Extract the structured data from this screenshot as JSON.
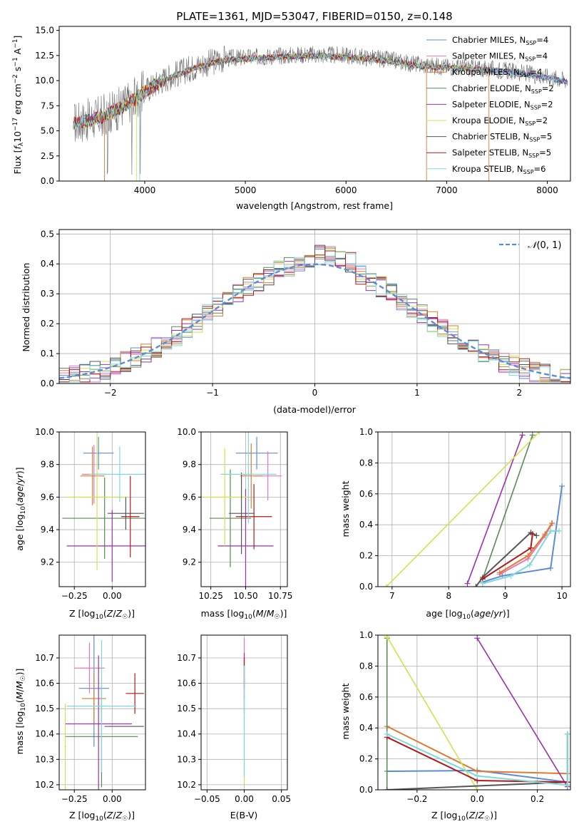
{
  "colors": {
    "chabrier_miles": "#5b8bd9",
    "salpeter_miles": "#e07ab5",
    "kroupa_miles": "#e07a30",
    "chabrier_elodie": "#5a8a5a",
    "salpeter_elodie": "#9a32b0",
    "kroupa_elodie": "#d4e050",
    "chabrier_stelib": "#555555",
    "salpeter_stelib": "#b01a1a",
    "kroupa_stelib": "#7fd8dc",
    "data": "#707070",
    "normal": "#5b8bd9"
  },
  "chart_data": [
    {
      "id": "spectrum",
      "type": "line",
      "title": "PLATE=1361, MJD=53047, FIBERID=0150, z=0.148",
      "xlabel": "wavelength [Angstrom, rest frame]",
      "ylabel": "Flux [f_λ 10^-17 erg cm^-2 s^-1 A^-1]",
      "xlim": [
        3150,
        8230
      ],
      "ylim": [
        0,
        15.4
      ],
      "xticks": [
        "4000",
        "5000",
        "6000",
        "7000",
        "8000"
      ],
      "yticks": [
        "0.0",
        "2.5",
        "5.0",
        "7.5",
        "10.0",
        "12.5",
        "15.0"
      ],
      "grid": false,
      "legend_position": "upper-right",
      "legend": [
        {
          "name": "Chabrier MILES, N_SSP=4",
          "color": "#5b8bd9"
        },
        {
          "name": "Salpeter MILES, N_SSP=4",
          "color": "#e07ab5"
        },
        {
          "name": "Kroupa MILES, N_SSP=4",
          "color": "#e07a30"
        },
        {
          "name": "Chabrier ELODIE, N_SSP=2",
          "color": "#5a8a5a"
        },
        {
          "name": "Salpeter ELODIE, N_SSP=2",
          "color": "#9a32b0"
        },
        {
          "name": "Kroupa ELODIE, N_SSP=2",
          "color": "#d4e050"
        },
        {
          "name": "Chabrier STELIB, N_SSP=5",
          "color": "#555555"
        },
        {
          "name": "Salpeter STELIB, N_SSP=5",
          "color": "#b01a1a"
        },
        {
          "name": "Kroupa STELIB, N_SSP=6",
          "color": "#7fd8dc"
        }
      ],
      "continuum": [
        [
          3300,
          5.8
        ],
        [
          3500,
          6.2
        ],
        [
          3700,
          7.0
        ],
        [
          3900,
          8.2
        ],
        [
          4000,
          9.0
        ],
        [
          4200,
          10.2
        ],
        [
          4500,
          11.4
        ],
        [
          4800,
          12.2
        ],
        [
          5200,
          12.4
        ],
        [
          5600,
          12.6
        ],
        [
          6000,
          12.5
        ],
        [
          6400,
          12.1
        ],
        [
          6800,
          11.5
        ],
        [
          7200,
          11.3
        ],
        [
          7600,
          11.0
        ],
        [
          8000,
          10.4
        ],
        [
          8200,
          10.0
        ]
      ]
    },
    {
      "id": "residuals",
      "type": "histogram",
      "xlabel": "(data-model)/error",
      "ylabel": "Normed distribution",
      "xlim": [
        -2.5,
        2.5
      ],
      "ylim": [
        0,
        0.515
      ],
      "xticks": [
        "−2",
        "−1",
        "0",
        "1",
        "2"
      ],
      "yticks": [
        "0.0",
        "0.1",
        "0.2",
        "0.3",
        "0.4",
        "0.5"
      ],
      "grid": true,
      "bin_width": 0.1,
      "legend_position": "upper-right",
      "legend": [
        {
          "name": "N(0,1)",
          "style": "dashed",
          "color": "#5b8bd9"
        }
      ]
    },
    {
      "id": "age-vs-Z",
      "type": "errorbar",
      "xlabel": "Z [log10(Z/Z☉)]",
      "ylabel": "age [log10(age/yr)]",
      "xlim": [
        -0.35,
        0.22
      ],
      "ylim": [
        9.05,
        10.0
      ],
      "xticks": [
        "−0.25",
        "0.00"
      ],
      "yticks": [
        "9.2",
        "9.4",
        "9.6",
        "9.8",
        "10.0"
      ],
      "grid": true,
      "points": [
        {
          "series": "Chabrier MILES",
          "x": -0.09,
          "xerr": 0.1,
          "y": 9.87,
          "yerr": 0.1
        },
        {
          "series": "Salpeter MILES",
          "x": -0.12,
          "xerr": 0.08,
          "y": 9.74,
          "yerr": 0.18
        },
        {
          "series": "Kroupa MILES",
          "x": -0.13,
          "xerr": 0.08,
          "y": 9.73,
          "yerr": 0.18
        },
        {
          "series": "Chabrier ELODIE",
          "x": -0.05,
          "xerr": 0.28,
          "y": 9.47,
          "yerr": 0.25
        },
        {
          "series": "Salpeter ELODIE",
          "x": 0.0,
          "xerr": 0.3,
          "y": 9.3,
          "yerr": 0.22
        },
        {
          "series": "Kroupa ELODIE",
          "x": -0.1,
          "xerr": 0.2,
          "y": 9.6,
          "yerr": 0.45
        },
        {
          "series": "Chabrier STELIB",
          "x": 0.09,
          "xerr": 0.12,
          "y": 9.5,
          "yerr": 0.1
        },
        {
          "series": "Salpeter STELIB",
          "x": 0.12,
          "xerr": 0.06,
          "y": 9.48,
          "yerr": 0.25
        },
        {
          "series": "Kroupa STELIB",
          "x": 0.05,
          "xerr": 0.2,
          "y": 9.74,
          "yerr": 0.17
        }
      ]
    },
    {
      "id": "age-vs-mass",
      "type": "errorbar",
      "xlabel": "mass [log10(M/M☉)]",
      "xlim": [
        10.18,
        10.8
      ],
      "ylim": [
        9.05,
        10.0
      ],
      "xticks": [
        "10.25",
        "10.50",
        "10.75"
      ],
      "yticks": [
        "9.2",
        "9.4",
        "9.6",
        "9.8",
        "10.0"
      ],
      "grid": true,
      "points": [
        {
          "series": "Chabrier MILES",
          "x": 10.58,
          "xerr": 0.15,
          "y": 9.87,
          "yerr": 0.1
        },
        {
          "series": "Salpeter MILES",
          "x": 10.66,
          "xerr": 0.1,
          "y": 9.73,
          "yerr": 0.15
        },
        {
          "series": "Kroupa MILES",
          "x": 10.54,
          "xerr": 0.08,
          "y": 9.73,
          "yerr": 0.2
        },
        {
          "series": "Chabrier ELODIE",
          "x": 10.39,
          "xerr": 0.15,
          "y": 9.47,
          "yerr": 0.3
        },
        {
          "series": "Salpeter ELODIE",
          "x": 10.5,
          "xerr": 0.2,
          "y": 9.3,
          "yerr": 0.35
        },
        {
          "series": "Kroupa ELODIE",
          "x": 10.35,
          "xerr": 0.17,
          "y": 9.6,
          "yerr": 0.3
        },
        {
          "series": "Chabrier STELIB",
          "x": 10.47,
          "xerr": 0.09,
          "y": 9.5,
          "yerr": 0.25
        },
        {
          "series": "Salpeter STELIB",
          "x": 10.56,
          "xerr": 0.13,
          "y": 9.48,
          "yerr": 0.2
        },
        {
          "series": "Kroupa STELIB",
          "x": 10.52,
          "xerr": 0.2,
          "y": 9.74,
          "yerr": 0.3
        }
      ]
    },
    {
      "id": "mass-weight-vs-age",
      "type": "line",
      "xlabel": "age [log10(age/yr)]",
      "ylabel": "mass weight",
      "xlim": [
        6.75,
        10.15
      ],
      "ylim": [
        0,
        1.0
      ],
      "xticks": [
        "7",
        "8",
        "9",
        "10"
      ],
      "yticks": [
        "0.0",
        "0.2",
        "0.4",
        "0.6",
        "0.8",
        "1.0"
      ],
      "grid": true,
      "series": [
        {
          "name": "Chabrier MILES",
          "points": [
            [
              8.6,
              0.03
            ],
            [
              8.95,
              0.07
            ],
            [
              9.8,
              0.12
            ],
            [
              10.0,
              0.65
            ]
          ]
        },
        {
          "name": "Salpeter MILES",
          "points": [
            [
              8.9,
              0.08
            ],
            [
              9.4,
              0.18
            ],
            [
              9.7,
              0.33
            ],
            [
              9.83,
              0.41
            ]
          ]
        },
        {
          "name": "Kroupa MILES",
          "points": [
            [
              8.9,
              0.09
            ],
            [
              9.4,
              0.2
            ],
            [
              9.7,
              0.34
            ],
            [
              9.82,
              0.41
            ]
          ]
        },
        {
          "name": "Chabrier ELODIE",
          "points": [
            [
              8.6,
              0.05
            ],
            [
              9.48,
              0.98
            ]
          ]
        },
        {
          "name": "Salpeter ELODIE",
          "points": [
            [
              8.33,
              0.02
            ],
            [
              9.3,
              0.98
            ]
          ]
        },
        {
          "name": "Kroupa ELODIE",
          "points": [
            [
              6.9,
              0.0
            ],
            [
              9.6,
              1.0
            ]
          ]
        },
        {
          "name": "Chabrier STELIB",
          "points": [
            [
              8.48,
              0.0
            ],
            [
              8.6,
              0.06
            ],
            [
              9.45,
              0.35
            ],
            [
              9.55,
              0.33
            ]
          ]
        },
        {
          "name": "Salpeter STELIB",
          "points": [
            [
              8.6,
              0.05
            ],
            [
              9.45,
              0.25
            ],
            [
              9.48,
              0.34
            ]
          ]
        },
        {
          "name": "Kroupa STELIB",
          "points": [
            [
              8.6,
              0.02
            ],
            [
              9.1,
              0.07
            ],
            [
              9.43,
              0.14
            ],
            [
              9.8,
              0.36
            ],
            [
              9.95,
              0.36
            ]
          ]
        }
      ]
    },
    {
      "id": "mass-vs-Z",
      "type": "errorbar",
      "xlabel": "Z [log10(Z/Z☉)]",
      "ylabel": "mass [log10(M/M☉)]",
      "xlim": [
        -0.35,
        0.22
      ],
      "ylim": [
        10.18,
        10.79
      ],
      "xticks": [
        "−0.25",
        "0.00"
      ],
      "yticks": [
        "10.2",
        "10.3",
        "10.4",
        "10.5",
        "10.6",
        "10.7"
      ],
      "grid": true,
      "points": [
        {
          "series": "Chabrier MILES",
          "x": -0.12,
          "xerr": 0.1,
          "y": 10.58,
          "yerr": 0.23
        },
        {
          "series": "Salpeter MILES",
          "x": -0.15,
          "xerr": 0.1,
          "y": 10.66,
          "yerr": 0.1
        },
        {
          "series": "Kroupa MILES",
          "x": -0.12,
          "xerr": 0.08,
          "y": 10.54,
          "yerr": 0.1
        },
        {
          "series": "Chabrier ELODIE",
          "x": -0.07,
          "xerr": 0.24,
          "y": 10.39,
          "yerr": 0.2
        },
        {
          "series": "Salpeter ELODIE",
          "x": -0.09,
          "xerr": 0.22,
          "y": 10.44,
          "yerr": 0.27
        },
        {
          "series": "Kroupa ELODIE",
          "x": -0.31,
          "xerr": 0.005,
          "y": 10.35,
          "yerr": 0.17
        },
        {
          "series": "Chabrier STELIB",
          "x": 0.08,
          "xerr": 0.13,
          "y": 10.43,
          "yerr": 0.0
        },
        {
          "series": "Salpeter STELIB",
          "x": 0.15,
          "xerr": 0.06,
          "y": 10.56,
          "yerr": 0.08
        },
        {
          "series": "Kroupa STELIB",
          "x": -0.07,
          "xerr": 0.23,
          "y": 10.51,
          "yerr": 0.26
        }
      ]
    },
    {
      "id": "mass-vs-EBV",
      "type": "errorbar",
      "xlabel": "E(B-V)",
      "xlim": [
        -0.058,
        0.058
      ],
      "ylim": [
        10.18,
        10.79
      ],
      "xticks": [
        "−0.05",
        "0.00",
        "0.05"
      ],
      "yticks": [
        "10.2",
        "10.3",
        "10.4",
        "10.5",
        "10.6",
        "10.7"
      ],
      "grid": true,
      "points": [
        {
          "series": "Salpeter MILES",
          "x": 0.0,
          "y": 10.66,
          "yerr": 0.12
        },
        {
          "series": "Salpeter ELODIE",
          "x": 0.0,
          "y": 10.6,
          "yerr": 0.12
        },
        {
          "series": "Salpeter STELIB",
          "x": 0.0,
          "y": 10.64,
          "yerr": 0.06
        },
        {
          "series": "Kroupa ELODIE",
          "x": 0.0,
          "y": 10.35,
          "yerr": 0.15
        },
        {
          "series": "Kroupa STELIB",
          "x": 0.0,
          "y": 10.45,
          "yerr": 0.22
        }
      ]
    },
    {
      "id": "mass-weight-vs-Z",
      "type": "line",
      "xlabel": "Z [log10(Z/Z☉)]",
      "ylabel": "mass weight",
      "xlim": [
        -0.33,
        0.31
      ],
      "ylim": [
        0,
        1.0
      ],
      "xticks": [
        "−0.2",
        "0.0",
        "0.2"
      ],
      "yticks": [
        "0.0",
        "0.2",
        "0.4",
        "0.6",
        "0.8",
        "1.0"
      ],
      "grid": true,
      "series": [
        {
          "name": "Chabrier MILES",
          "points": [
            [
              -0.3,
              0.12
            ],
            [
              0.0,
              0.125
            ],
            [
              0.3,
              0.05
            ]
          ]
        },
        {
          "name": "Kroupa MILES",
          "points": [
            [
              -0.3,
              0.41
            ],
            [
              0.0,
              0.12
            ],
            [
              0.3,
              0.105
            ]
          ]
        },
        {
          "name": "Chabrier ELODIE",
          "points": [
            [
              -0.3,
              0.98
            ],
            [
              -0.3,
              0.0
            ]
          ]
        },
        {
          "name": "Salpeter ELODIE",
          "points": [
            [
              0.0,
              0.98
            ],
            [
              0.3,
              0.02
            ]
          ]
        },
        {
          "name": "Kroupa ELODIE",
          "points": [
            [
              -0.3,
              0.99
            ],
            [
              0.0,
              0.0
            ]
          ]
        },
        {
          "name": "Chabrier STELIB",
          "points": [
            [
              -0.3,
              0.0
            ],
            [
              0.3,
              0.05
            ],
            [
              0.3,
              0.36
            ]
          ]
        },
        {
          "name": "Salpeter STELIB",
          "points": [
            [
              -0.3,
              0.34
            ],
            [
              0.0,
              0.06
            ],
            [
              0.3,
              0.05
            ]
          ]
        },
        {
          "name": "Kroupa STELIB",
          "points": [
            [
              -0.3,
              0.36
            ],
            [
              0.0,
              0.09
            ],
            [
              0.3,
              0.03
            ],
            [
              0.3,
              0.36
            ]
          ]
        }
      ]
    }
  ]
}
